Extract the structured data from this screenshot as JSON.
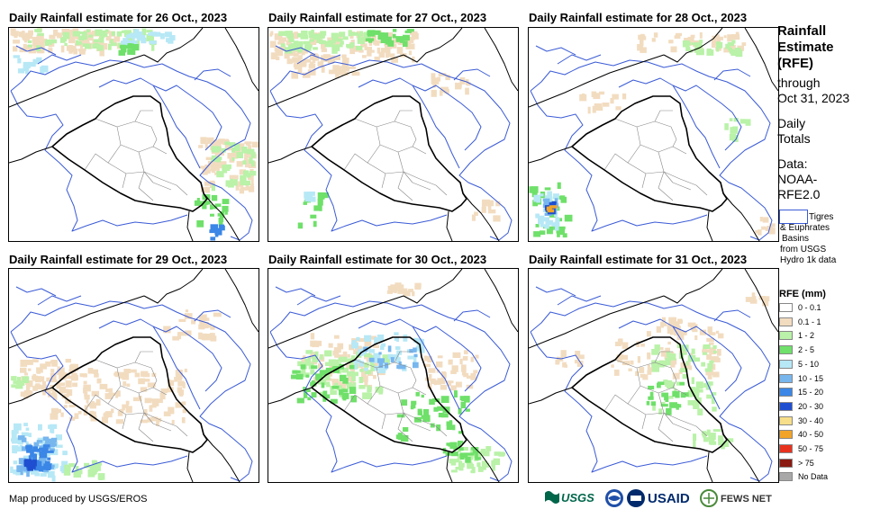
{
  "panels": [
    {
      "title": "Daily Rainfall estimate for 26 Oct., 2023"
    },
    {
      "title": "Daily Rainfall estimate for 27 Oct., 2023"
    },
    {
      "title": "Daily Rainfall estimate for 28 Oct., 2023"
    },
    {
      "title": "Daily Rainfall estimate for 29 Oct., 2023"
    },
    {
      "title": "Daily Rainfall estimate for 30 Oct., 2023"
    },
    {
      "title": "Daily Rainfall estimate for 31 Oct., 2023"
    }
  ],
  "sidebar": {
    "title_lines": [
      "Rainfall",
      "Estimate",
      "(RFE)"
    ],
    "through_lines": [
      "through",
      "Oct 31, 2023"
    ],
    "daily_lines": [
      "Daily",
      "Totals"
    ],
    "data_lines": [
      "Data:",
      "NOAA-",
      "RFE2.0"
    ],
    "basin_legend_first": "Tigres",
    "basin_legend_rest": [
      "& Euphrates",
      "Basins",
      "from USGS",
      "Hydro 1k data"
    ]
  },
  "legend": {
    "title": "RFE (mm)",
    "items": [
      {
        "label": "0 - 0.1",
        "color": "#ffffff"
      },
      {
        "label": "0.1 - 1",
        "color": "#f2dcc0"
      },
      {
        "label": "1 - 2",
        "color": "#b9f2a8"
      },
      {
        "label": "2 - 5",
        "color": "#6fe06a"
      },
      {
        "label": "5 - 10",
        "color": "#b7e8f6"
      },
      {
        "label": "10 - 15",
        "color": "#78b6ee"
      },
      {
        "label": "15 - 20",
        "color": "#3b86e6"
      },
      {
        "label": "20 - 30",
        "color": "#1f4fd0"
      },
      {
        "label": "30 - 40",
        "color": "#f6de8a"
      },
      {
        "label": "40 - 50",
        "color": "#f2a428"
      },
      {
        "label": "50 - 75",
        "color": "#e8321e"
      },
      {
        "label": "> 75",
        "color": "#8a1a12"
      },
      {
        "label": "No Data",
        "color": "#a8a8a8"
      }
    ]
  },
  "footer": {
    "credit": "Map produced by USGS/EROS",
    "logos": [
      "USGS",
      "NOAA",
      "USAID",
      "FEWS NET"
    ]
  },
  "colors": {
    "basin_outline": "#3b5bd6",
    "border": "#000000",
    "admin_lines": "#888888"
  }
}
